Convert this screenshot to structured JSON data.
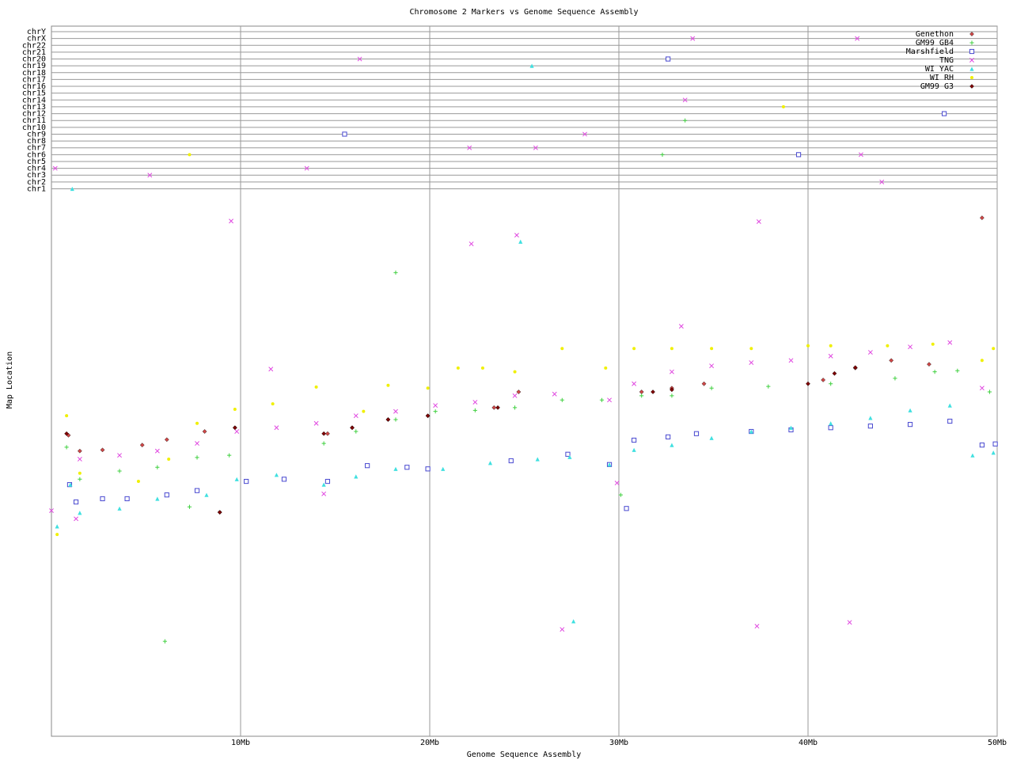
{
  "chart_data": {
    "type": "scatter",
    "title": "Chromosome 2 Markers vs Genome Sequence Assembly",
    "xlabel": "Genome Sequence Assembly",
    "ylabel": "Map Location",
    "xlim": [
      0,
      50
    ],
    "xticks": [
      {
        "value": 10,
        "label": "10Mb"
      },
      {
        "value": 20,
        "label": "20Mb"
      },
      {
        "value": 30,
        "label": "30Mb"
      },
      {
        "value": 40,
        "label": "40Mb"
      },
      {
        "value": 50,
        "label": "50Mb"
      }
    ],
    "ylim": [
      0,
      100
    ],
    "grid": true,
    "legend": "top-right",
    "chromosomes": [
      "chr1",
      "chr2",
      "chr3",
      "chr4",
      "chr5",
      "chr6",
      "chr7",
      "chr8",
      "chr9",
      "chr10",
      "chr11",
      "chr12",
      "chr13",
      "chr14",
      "chr15",
      "chr16",
      "chr17",
      "chr18",
      "chr19",
      "chr20",
      "chr21",
      "chr22",
      "chrX",
      "chrY"
    ],
    "series": [
      {
        "name": "Genethon",
        "color": "#d04848",
        "marker": "diamond",
        "x": [
          0.9,
          1.5,
          2.7,
          4.8,
          6.1,
          8.1,
          9.7,
          14.6,
          15.9,
          17.8,
          19.9,
          23.4,
          24.7,
          31.2,
          32.8,
          34.5,
          40.8,
          42.5,
          44.4,
          46.4,
          49.2,
          8.9
        ],
        "y": [
          55.5,
          52.6,
          52.8,
          53.7,
          54.7,
          56.2,
          56.9,
          55.8,
          56.9,
          58.4,
          59.1,
          60.6,
          63.5,
          63.5,
          64.2,
          65.0,
          65.7,
          67.9,
          69.3,
          68.6,
          95.6,
          41.3
        ],
        "other_x": [],
        "other_chr": []
      },
      {
        "name": "GM99 GB4",
        "color": "#40d040",
        "marker": "plus",
        "x": [
          0.8,
          1.5,
          3.6,
          5.6,
          7.7,
          9.4,
          14.4,
          16.1,
          18.2,
          20.3,
          22.4,
          24.5,
          27.0,
          29.1,
          30.1,
          31.2,
          32.8,
          34.9,
          37.9,
          41.2,
          44.6,
          46.7,
          47.9,
          49.6,
          18.2,
          6.0,
          7.3
        ],
        "y": [
          53.3,
          47.4,
          48.9,
          49.6,
          51.4,
          51.8,
          54.0,
          56.2,
          58.4,
          59.9,
          60.1,
          60.6,
          62.0,
          62.0,
          44.5,
          62.8,
          62.8,
          64.2,
          64.5,
          65.0,
          66.0,
          67.2,
          67.4,
          63.5,
          85.5,
          17.5,
          42.3
        ],
        "other_x": [
          32.3,
          33.5
        ],
        "other_chr": [
          "chr6",
          "chr11"
        ]
      },
      {
        "name": "Marshfield",
        "color": "#4848d0",
        "marker": "square",
        "x": [
          0.96,
          1.3,
          2.7,
          4.0,
          6.1,
          7.7,
          10.3,
          12.3,
          14.6,
          16.7,
          18.8,
          19.9,
          24.3,
          27.3,
          29.5,
          30.4,
          30.8,
          32.6,
          34.1,
          37.0,
          39.1,
          41.2,
          43.3,
          45.4,
          47.5,
          49.2,
          49.9
        ],
        "y": [
          46.4,
          43.2,
          43.8,
          43.8,
          44.5,
          45.3,
          47.0,
          47.4,
          47.0,
          49.9,
          49.6,
          49.3,
          50.8,
          52.0,
          50.1,
          42.0,
          54.6,
          55.2,
          55.8,
          56.2,
          56.5,
          56.9,
          57.2,
          57.5,
          58.1,
          53.7,
          53.9
        ],
        "other_x": [
          32.6,
          15.5,
          39.5,
          47.2
        ],
        "other_chr": [
          "chr20",
          "chr9",
          "chr6",
          "chr12"
        ]
      },
      {
        "name": "TNG",
        "color": "#e048e0",
        "marker": "cross",
        "x": [
          0,
          1.5,
          3.6,
          5.6,
          7.7,
          9.8,
          11.9,
          14.0,
          16.1,
          18.2,
          20.3,
          22.4,
          24.5,
          26.6,
          29.5,
          30.8,
          32.8,
          34.9,
          37.0,
          39.1,
          41.2,
          43.3,
          45.4,
          47.5,
          49.2,
          9.5,
          22.2,
          24.6,
          33.3,
          37.4,
          11.6,
          14.4,
          1.3,
          27.0,
          37.3,
          42.2,
          29.9
        ],
        "y": [
          41.6,
          51.1,
          51.8,
          52.6,
          54.0,
          56.2,
          56.9,
          57.7,
          59.1,
          59.9,
          61.0,
          61.6,
          62.8,
          63.1,
          62.0,
          65.0,
          67.2,
          68.3,
          68.9,
          69.3,
          70.1,
          70.8,
          71.8,
          72.6,
          64.2,
          95.0,
          90.8,
          92.4,
          75.6,
          94.9,
          67.7,
          44.7,
          40.1,
          19.7,
          20.3,
          21.0,
          46.7
        ],
        "other_x": [
          0.2,
          5.2,
          13.5,
          16.3,
          22.1,
          25.6,
          28.2,
          33.9,
          33.5,
          42.6,
          42.8,
          43.9
        ],
        "other_chr": [
          "chr4",
          "chr3",
          "chr4",
          "chr20",
          "chr7",
          "chr7",
          "chr9",
          "chrX",
          "chr14",
          "chrX",
          "chr6",
          "chr2"
        ]
      },
      {
        "name": "WI YAC",
        "color": "#40e0e0",
        "marker": "triangle",
        "x": [
          0.3,
          1.0,
          1.5,
          3.6,
          5.6,
          8.2,
          9.8,
          11.9,
          14.4,
          16.1,
          18.2,
          20.7,
          23.2,
          25.7,
          27.4,
          29.5,
          30.8,
          32.8,
          34.9,
          37.0,
          39.1,
          41.2,
          43.3,
          45.4,
          47.5,
          48.7,
          49.8,
          24.8,
          27.6
        ],
        "y": [
          38.7,
          46.4,
          41.2,
          42.0,
          43.8,
          44.5,
          47.4,
          48.2,
          46.4,
          47.9,
          49.3,
          49.3,
          50.4,
          51.1,
          51.5,
          50.1,
          52.8,
          53.7,
          55.0,
          56.2,
          56.9,
          57.7,
          58.7,
          60.1,
          61.0,
          51.8,
          52.3,
          91.2,
          21.2
        ],
        "other_x": [
          1.1,
          25.4
        ],
        "other_chr": [
          "chr1",
          "chr19"
        ]
      },
      {
        "name": "WI RH",
        "color": "#f0f000",
        "marker": "dot",
        "x": [
          0.3,
          0.8,
          1.5,
          4.6,
          6.2,
          7.7,
          9.7,
          11.7,
          14.0,
          16.5,
          17.8,
          19.9,
          21.5,
          22.8,
          24.5,
          27.0,
          29.3,
          30.8,
          32.8,
          34.9,
          37.0,
          40.0,
          41.2,
          44.2,
          46.6,
          49.8,
          49.2
        ],
        "y": [
          37.2,
          59.1,
          48.5,
          47.0,
          51.1,
          57.7,
          60.3,
          61.3,
          64.4,
          59.9,
          64.7,
          64.2,
          67.9,
          67.9,
          67.2,
          71.5,
          67.9,
          71.5,
          71.5,
          71.5,
          71.5,
          72.0,
          72.0,
          72.0,
          72.3,
          71.5,
          69.3
        ],
        "other_x": [
          7.3,
          38.7
        ],
        "other_chr": [
          "chr6",
          "chr13"
        ]
      },
      {
        "name": "GM99 G3",
        "color": "#800000",
        "marker": "diamond",
        "x": [
          0.8,
          9.7,
          14.4,
          15.9,
          17.8,
          19.9,
          23.6,
          31.8,
          32.8,
          40.0,
          41.4,
          42.5,
          8.9
        ],
        "y": [
          55.8,
          56.9,
          55.8,
          56.9,
          58.4,
          59.1,
          60.6,
          63.5,
          63.9,
          65.0,
          66.9,
          68.0,
          41.3
        ],
        "other_x": [],
        "other_chr": []
      }
    ]
  }
}
